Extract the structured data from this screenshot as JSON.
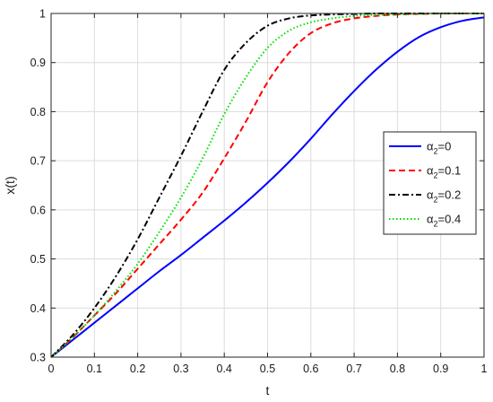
{
  "chart_data": {
    "type": "line",
    "xlabel": "t",
    "ylabel": "x(t)",
    "xlim": [
      0,
      1
    ],
    "ylim": [
      0.3,
      1
    ],
    "xticks": [
      "0",
      "0.1",
      "0.2",
      "0.3",
      "0.4",
      "0.5",
      "0.6",
      "0.7",
      "0.8",
      "0.9",
      "1"
    ],
    "yticks": [
      "0.3",
      "0.4",
      "0.5",
      "0.6",
      "0.7",
      "0.8",
      "0.9",
      "1"
    ],
    "grid": true,
    "legend_position": "right",
    "x": [
      0,
      0.05,
      0.1,
      0.15,
      0.2,
      0.25,
      0.3,
      0.35,
      0.4,
      0.45,
      0.5,
      0.55,
      0.6,
      0.65,
      0.7,
      0.75,
      0.8,
      0.85,
      0.9,
      0.95,
      1.0
    ],
    "series": [
      {
        "name_symbol": "α",
        "name_sub": "2",
        "name_rest": "=0",
        "color": "#0000ff",
        "dash": "solid",
        "values": [
          0.3,
          0.335,
          0.37,
          0.405,
          0.44,
          0.475,
          0.508,
          0.543,
          0.578,
          0.615,
          0.655,
          0.698,
          0.745,
          0.795,
          0.842,
          0.885,
          0.922,
          0.952,
          0.972,
          0.985,
          0.992
        ]
      },
      {
        "name_symbol": "α",
        "name_sub": "2",
        "name_rest": "=0.1",
        "color": "#ff0000",
        "dash": "dashed",
        "values": [
          0.3,
          0.34,
          0.385,
          0.43,
          0.48,
          0.53,
          0.58,
          0.635,
          0.705,
          0.78,
          0.86,
          0.92,
          0.96,
          0.98,
          0.99,
          0.995,
          0.998,
          0.999,
          1.0,
          1.0,
          1.0
        ]
      },
      {
        "name_symbol": "α",
        "name_sub": "2",
        "name_rest": "=0.2",
        "color": "#000000",
        "dash": "dashdot",
        "values": [
          0.3,
          0.345,
          0.4,
          0.465,
          0.54,
          0.625,
          0.71,
          0.8,
          0.885,
          0.94,
          0.975,
          0.99,
          0.996,
          0.998,
          0.999,
          1.0,
          1.0,
          1.0,
          1.0,
          1.0,
          1.0
        ]
      },
      {
        "name_symbol": "α",
        "name_sub": "2",
        "name_rest": "=0.4",
        "color": "#00dd00",
        "dash": "dotted",
        "values": [
          0.3,
          0.34,
          0.385,
          0.435,
          0.49,
          0.555,
          0.625,
          0.705,
          0.795,
          0.87,
          0.93,
          0.965,
          0.982,
          0.99,
          0.995,
          0.997,
          0.998,
          0.999,
          1.0,
          1.0,
          1.0
        ]
      }
    ]
  }
}
